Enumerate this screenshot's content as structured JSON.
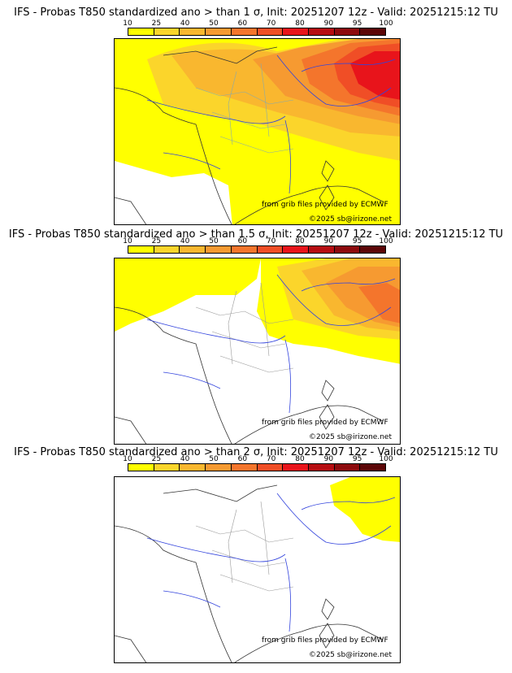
{
  "colorbar": {
    "ticks": [
      "10",
      "25",
      "40",
      "50",
      "60",
      "70",
      "80",
      "90",
      "95",
      "100"
    ],
    "colors": [
      "#ffff00",
      "#fbd52b",
      "#f9b72f",
      "#f69a31",
      "#f4752c",
      "#f04e26",
      "#e8141b",
      "#b60d11",
      "#8d0a0d",
      "#5c0607"
    ]
  },
  "panels": [
    {
      "title": "IFS - Probas T850  standardized ano > than 1 σ, Init: 20251207 12z - Valid: 20251215:12 TU",
      "credit_source": "from grib files provided by ECMWF",
      "credit_copy": "©2025 sb@irizone.net"
    },
    {
      "title": "IFS - Probas T850  standardized ano > than 1.5 σ, Init: 20251207 12z - Valid: 20251215:12 TU",
      "credit_source": "from grib files provided by ECMWF",
      "credit_copy": "©2025 sb@irizone.net"
    },
    {
      "title": "IFS - Probas T850  standardized ano > than 2 σ, Init: 20251207 12z - Valid: 20251215:12 TU",
      "credit_source": "from grib files provided by ECMWF",
      "credit_copy": "©2025 sb@irizone.net"
    }
  ]
}
